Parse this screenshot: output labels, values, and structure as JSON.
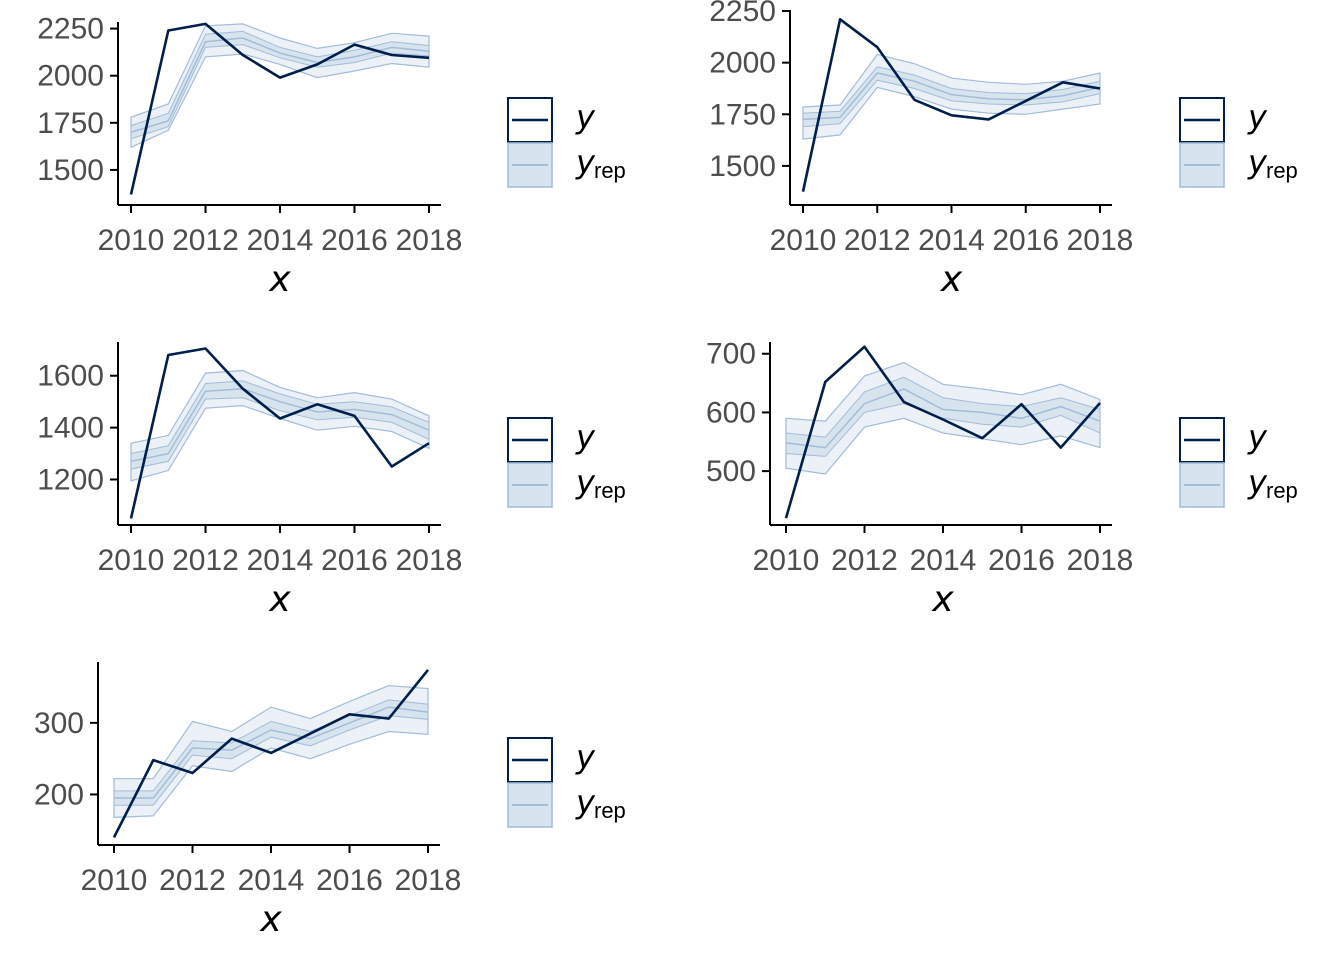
{
  "colors": {
    "y_line": "#011f4b",
    "yrep_line": "#a3bcd9",
    "band_outer": "#ebf1f6",
    "band_inner": "#d7e4ee",
    "band_edge": "#a3bcd9",
    "axis": "#000000",
    "tick_text": "#4d4d4d"
  },
  "legend": {
    "y_label": "y",
    "yrep_label": "y",
    "yrep_subscript": "rep"
  },
  "chart_data": [
    {
      "type": "line",
      "xlabel": "x",
      "x": [
        2010,
        2011,
        2012,
        2013,
        2014,
        2015,
        2016,
        2017,
        2018
      ],
      "x_ticks": [
        "2010",
        "2012",
        "2014",
        "2016",
        "2018"
      ],
      "ylim": [
        1335,
        2285
      ],
      "y_ticks": [
        "1500",
        "1750",
        "2000",
        "2250"
      ],
      "series": [
        {
          "name": "y",
          "values": [
            1370,
            2240,
            2275,
            2110,
            1990,
            2060,
            2165,
            2110,
            2095
          ]
        },
        {
          "name": "yrep",
          "median": [
            1700,
            1760,
            2180,
            2200,
            2120,
            2070,
            2100,
            2150,
            2130
          ],
          "inner_low": [
            1665,
            1730,
            2150,
            2165,
            2095,
            2045,
            2070,
            2120,
            2105
          ],
          "inner_high": [
            1735,
            1800,
            2220,
            2235,
            2150,
            2100,
            2135,
            2180,
            2160
          ],
          "outer_low": [
            1620,
            1710,
            2100,
            2115,
            2060,
            1990,
            2025,
            2065,
            2045
          ],
          "outer_high": [
            1780,
            1850,
            2265,
            2275,
            2200,
            2145,
            2175,
            2225,
            2210
          ]
        }
      ]
    },
    {
      "type": "line",
      "xlabel": "x",
      "x": [
        2010,
        2011,
        2012,
        2013,
        2014,
        2015,
        2016,
        2017,
        2018
      ],
      "x_ticks": [
        "2010",
        "2012",
        "2014",
        "2016",
        "2018"
      ],
      "ylim": [
        1330,
        2255
      ],
      "y_ticks": [
        "1500",
        "1750",
        "2000",
        "2250"
      ],
      "series": [
        {
          "name": "y",
          "values": [
            1375,
            2210,
            2075,
            1820,
            1745,
            1725,
            1815,
            1905,
            1875
          ]
        },
        {
          "name": "yrep",
          "median": [
            1725,
            1735,
            1950,
            1910,
            1845,
            1825,
            1820,
            1840,
            1880
          ],
          "inner_low": [
            1690,
            1705,
            1915,
            1875,
            1815,
            1800,
            1795,
            1810,
            1850
          ],
          "inner_high": [
            1755,
            1765,
            1980,
            1940,
            1875,
            1855,
            1850,
            1870,
            1910
          ],
          "outer_low": [
            1630,
            1650,
            1880,
            1835,
            1775,
            1755,
            1750,
            1775,
            1800
          ],
          "outer_high": [
            1785,
            1795,
            2040,
            1995,
            1925,
            1905,
            1895,
            1910,
            1950
          ]
        }
      ]
    },
    {
      "type": "line",
      "xlabel": "x",
      "x": [
        2010,
        2011,
        2012,
        2013,
        2014,
        2015,
        2016,
        2017,
        2018
      ],
      "x_ticks": [
        "2010",
        "2012",
        "2014",
        "2016",
        "2018"
      ],
      "ylim": [
        1040,
        1730
      ],
      "y_ticks": [
        "1200",
        "1400",
        "1600"
      ],
      "series": [
        {
          "name": "y",
          "values": [
            1050,
            1680,
            1705,
            1550,
            1435,
            1490,
            1445,
            1250,
            1340
          ]
        },
        {
          "name": "yrep",
          "median": [
            1270,
            1300,
            1540,
            1550,
            1500,
            1460,
            1470,
            1450,
            1390
          ],
          "inner_low": [
            1240,
            1270,
            1510,
            1515,
            1465,
            1430,
            1440,
            1420,
            1355
          ],
          "inner_high": [
            1300,
            1330,
            1570,
            1580,
            1530,
            1490,
            1500,
            1480,
            1420
          ],
          "outer_low": [
            1195,
            1235,
            1475,
            1485,
            1435,
            1390,
            1405,
            1385,
            1320
          ],
          "outer_high": [
            1340,
            1370,
            1610,
            1620,
            1555,
            1515,
            1535,
            1510,
            1445
          ]
        }
      ]
    },
    {
      "type": "line",
      "xlabel": "x",
      "x": [
        2010,
        2011,
        2012,
        2013,
        2014,
        2015,
        2016,
        2017,
        2018
      ],
      "x_ticks": [
        "2010",
        "2012",
        "2014",
        "2016",
        "2018"
      ],
      "ylim": [
        415,
        720
      ],
      "y_ticks": [
        "500",
        "600",
        "700"
      ],
      "series": [
        {
          "name": "y",
          "values": [
            420,
            652,
            712,
            618,
            588,
            556,
            614,
            540,
            616
          ]
        },
        {
          "name": "yrep",
          "median": [
            548,
            540,
            615,
            640,
            605,
            600,
            590,
            610,
            585
          ],
          "inner_low": [
            530,
            525,
            600,
            615,
            590,
            580,
            575,
            595,
            565
          ],
          "inner_high": [
            565,
            558,
            635,
            660,
            625,
            615,
            610,
            625,
            605
          ],
          "outer_low": [
            505,
            495,
            575,
            590,
            565,
            555,
            545,
            560,
            540
          ],
          "outer_high": [
            590,
            585,
            662,
            685,
            648,
            640,
            630,
            648,
            622
          ]
        }
      ]
    },
    {
      "type": "line",
      "xlabel": "x",
      "x": [
        2010,
        2011,
        2012,
        2013,
        2014,
        2015,
        2016,
        2017,
        2018
      ],
      "x_ticks": [
        "2010",
        "2012",
        "2014",
        "2016",
        "2018"
      ],
      "ylim": [
        135,
        385
      ],
      "y_ticks": [
        "200",
        "300"
      ],
      "series": [
        {
          "name": "y",
          "values": [
            140,
            248,
            230,
            278,
            258,
            285,
            312,
            306,
            374
          ]
        },
        {
          "name": "yrep",
          "median": [
            195,
            195,
            265,
            262,
            290,
            278,
            300,
            322,
            315
          ],
          "inner_low": [
            185,
            185,
            255,
            250,
            280,
            268,
            290,
            310,
            305
          ],
          "inner_high": [
            205,
            205,
            275,
            272,
            302,
            288,
            310,
            332,
            326
          ],
          "outer_low": [
            168,
            170,
            240,
            232,
            265,
            250,
            270,
            288,
            284
          ],
          "outer_high": [
            222,
            222,
            302,
            288,
            322,
            306,
            330,
            352,
            348
          ]
        }
      ]
    }
  ]
}
